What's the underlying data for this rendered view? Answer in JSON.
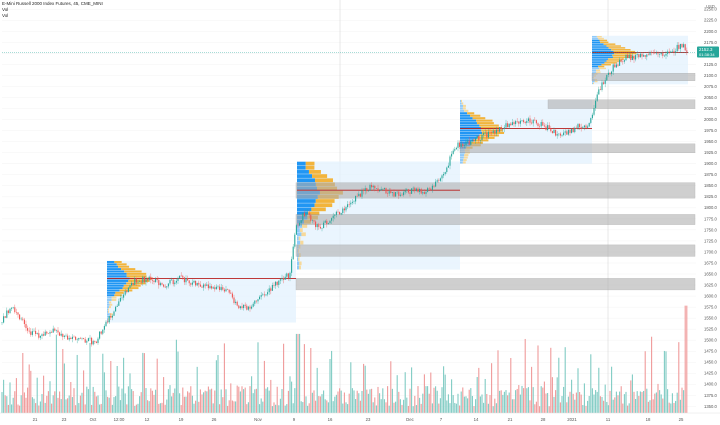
{
  "header": {
    "symbol_line": "E-Mini Russell 2000 Index Futures, 45, CME_MINI",
    "indicator_1": "Vol",
    "indicator_2": "Vol"
  },
  "axis": {
    "currency": "USD",
    "price_ticks": [
      "2250.0",
      "2225.0",
      "2200.0",
      "2175.0",
      "2150.0",
      "2125.0",
      "2100.0",
      "2075.0",
      "2050.0",
      "2025.0",
      "2000.0",
      "1975.0",
      "1950.0",
      "1925.0",
      "1900.0",
      "1875.0",
      "1850.0",
      "1825.0",
      "1800.0",
      "1775.0",
      "1750.0",
      "1725.0",
      "1700.0",
      "1675.0",
      "1650.0",
      "1625.0",
      "1600.0",
      "1575.0",
      "1550.0",
      "1525.0",
      "1500.0",
      "1475.0",
      "1450.0",
      "1425.0",
      "1400.0",
      "1375.0",
      "1350.0"
    ],
    "date_ticks": [
      "21",
      "23",
      "Oct",
      "12:00",
      "12",
      "19",
      "26",
      "Nov",
      "9",
      "16",
      "23",
      "Dec",
      "7",
      "14",
      "21",
      "28",
      "2021",
      "11",
      "18",
      "25"
    ],
    "last_price": "2152.3",
    "countdown": "01:38:34"
  },
  "colors": {
    "up": "#26a69a",
    "down": "#ef5350",
    "poc": "#b71c1c",
    "zone": "#b0b0b0",
    "va_blue": "#2196f3",
    "vp_orange": "#f2b43c",
    "va_bg": "#e3f2fd",
    "label_bg": "#26a69a"
  },
  "chart_data": {
    "type": "candlestick",
    "title": "E-Mini Russell 2000 Index Futures, 45, CME_MINI",
    "ylim": [
      1335,
      2262
    ],
    "price_axis_ticks": [
      2250,
      2225,
      2200,
      2175,
      2150,
      2125,
      2100,
      2075,
      2050,
      2025,
      2000,
      1975,
      1950,
      1925,
      1900,
      1875,
      1850,
      1825,
      1800,
      1775,
      1750,
      1725,
      1700,
      1675,
      1650,
      1625,
      1600,
      1575,
      1550,
      1525,
      1500,
      1475,
      1450,
      1425,
      1400,
      1375,
      1350
    ],
    "price_path_anchors": [
      [
        0,
        1540
      ],
      [
        12,
        1580
      ],
      [
        18,
        1560
      ],
      [
        28,
        1520
      ],
      [
        42,
        1510
      ],
      [
        55,
        1525
      ],
      [
        68,
        1500
      ],
      [
        80,
        1505
      ],
      [
        95,
        1495
      ],
      [
        105,
        1535
      ],
      [
        115,
        1570
      ],
      [
        125,
        1610
      ],
      [
        135,
        1635
      ],
      [
        150,
        1640
      ],
      [
        165,
        1625
      ],
      [
        180,
        1640
      ],
      [
        195,
        1630
      ],
      [
        210,
        1620
      ],
      [
        225,
        1615
      ],
      [
        238,
        1580
      ],
      [
        248,
        1570
      ],
      [
        258,
        1590
      ],
      [
        268,
        1610
      ],
      [
        280,
        1635
      ],
      [
        290,
        1650
      ],
      [
        296,
        1760
      ],
      [
        305,
        1790
      ],
      [
        318,
        1755
      ],
      [
        328,
        1770
      ],
      [
        345,
        1800
      ],
      [
        360,
        1830
      ],
      [
        372,
        1850
      ],
      [
        388,
        1835
      ],
      [
        400,
        1830
      ],
      [
        412,
        1840
      ],
      [
        425,
        1835
      ],
      [
        435,
        1855
      ],
      [
        445,
        1880
      ],
      [
        455,
        1940
      ],
      [
        470,
        1950
      ],
      [
        480,
        1960
      ],
      [
        492,
        1970
      ],
      [
        505,
        1985
      ],
      [
        515,
        1995
      ],
      [
        528,
        2000
      ],
      [
        540,
        1990
      ],
      [
        552,
        1975
      ],
      [
        560,
        1960
      ],
      [
        570,
        1975
      ],
      [
        580,
        1985
      ],
      [
        590,
        1990
      ],
      [
        598,
        2060
      ],
      [
        606,
        2100
      ],
      [
        614,
        2120
      ],
      [
        625,
        2140
      ],
      [
        640,
        2145
      ],
      [
        655,
        2150
      ],
      [
        668,
        2150
      ],
      [
        678,
        2165
      ],
      [
        684,
        2165
      ],
      [
        688,
        2152
      ]
    ],
    "volume_profiles": [
      {
        "x_start": 107,
        "x_end": 296,
        "price_low": 1540,
        "price_high": 1680,
        "poc_price": 1640,
        "poc_x_end": 296
      },
      {
        "x_start": 297,
        "x_end": 460,
        "price_low": 1660,
        "price_high": 1905,
        "poc_price": 1840,
        "poc_x_end": 460
      },
      {
        "x_start": 460,
        "x_end": 592,
        "price_low": 1900,
        "price_high": 2045,
        "poc_price": 1980,
        "poc_x_end": 592
      },
      {
        "x_start": 592,
        "x_end": 688,
        "price_low": 2080,
        "price_high": 2190,
        "poc_price": 2152,
        "poc_x_end": 688
      }
    ],
    "zones": [
      {
        "x_start": 296,
        "x_end": 695,
        "price_low": 1822,
        "price_high": 1857
      },
      {
        "x_start": 296,
        "x_end": 695,
        "price_low": 1762,
        "price_high": 1785
      },
      {
        "x_start": 296,
        "x_end": 695,
        "price_low": 1690,
        "price_high": 1716
      },
      {
        "x_start": 296,
        "x_end": 695,
        "price_low": 1614,
        "price_high": 1640
      },
      {
        "x_start": 460,
        "x_end": 695,
        "price_low": 1925,
        "price_high": 1945
      },
      {
        "x_start": 548,
        "x_end": 695,
        "price_low": 2025,
        "price_high": 2045
      },
      {
        "x_start": 592,
        "x_end": 695,
        "price_low": 2088,
        "price_high": 2105
      }
    ]
  }
}
